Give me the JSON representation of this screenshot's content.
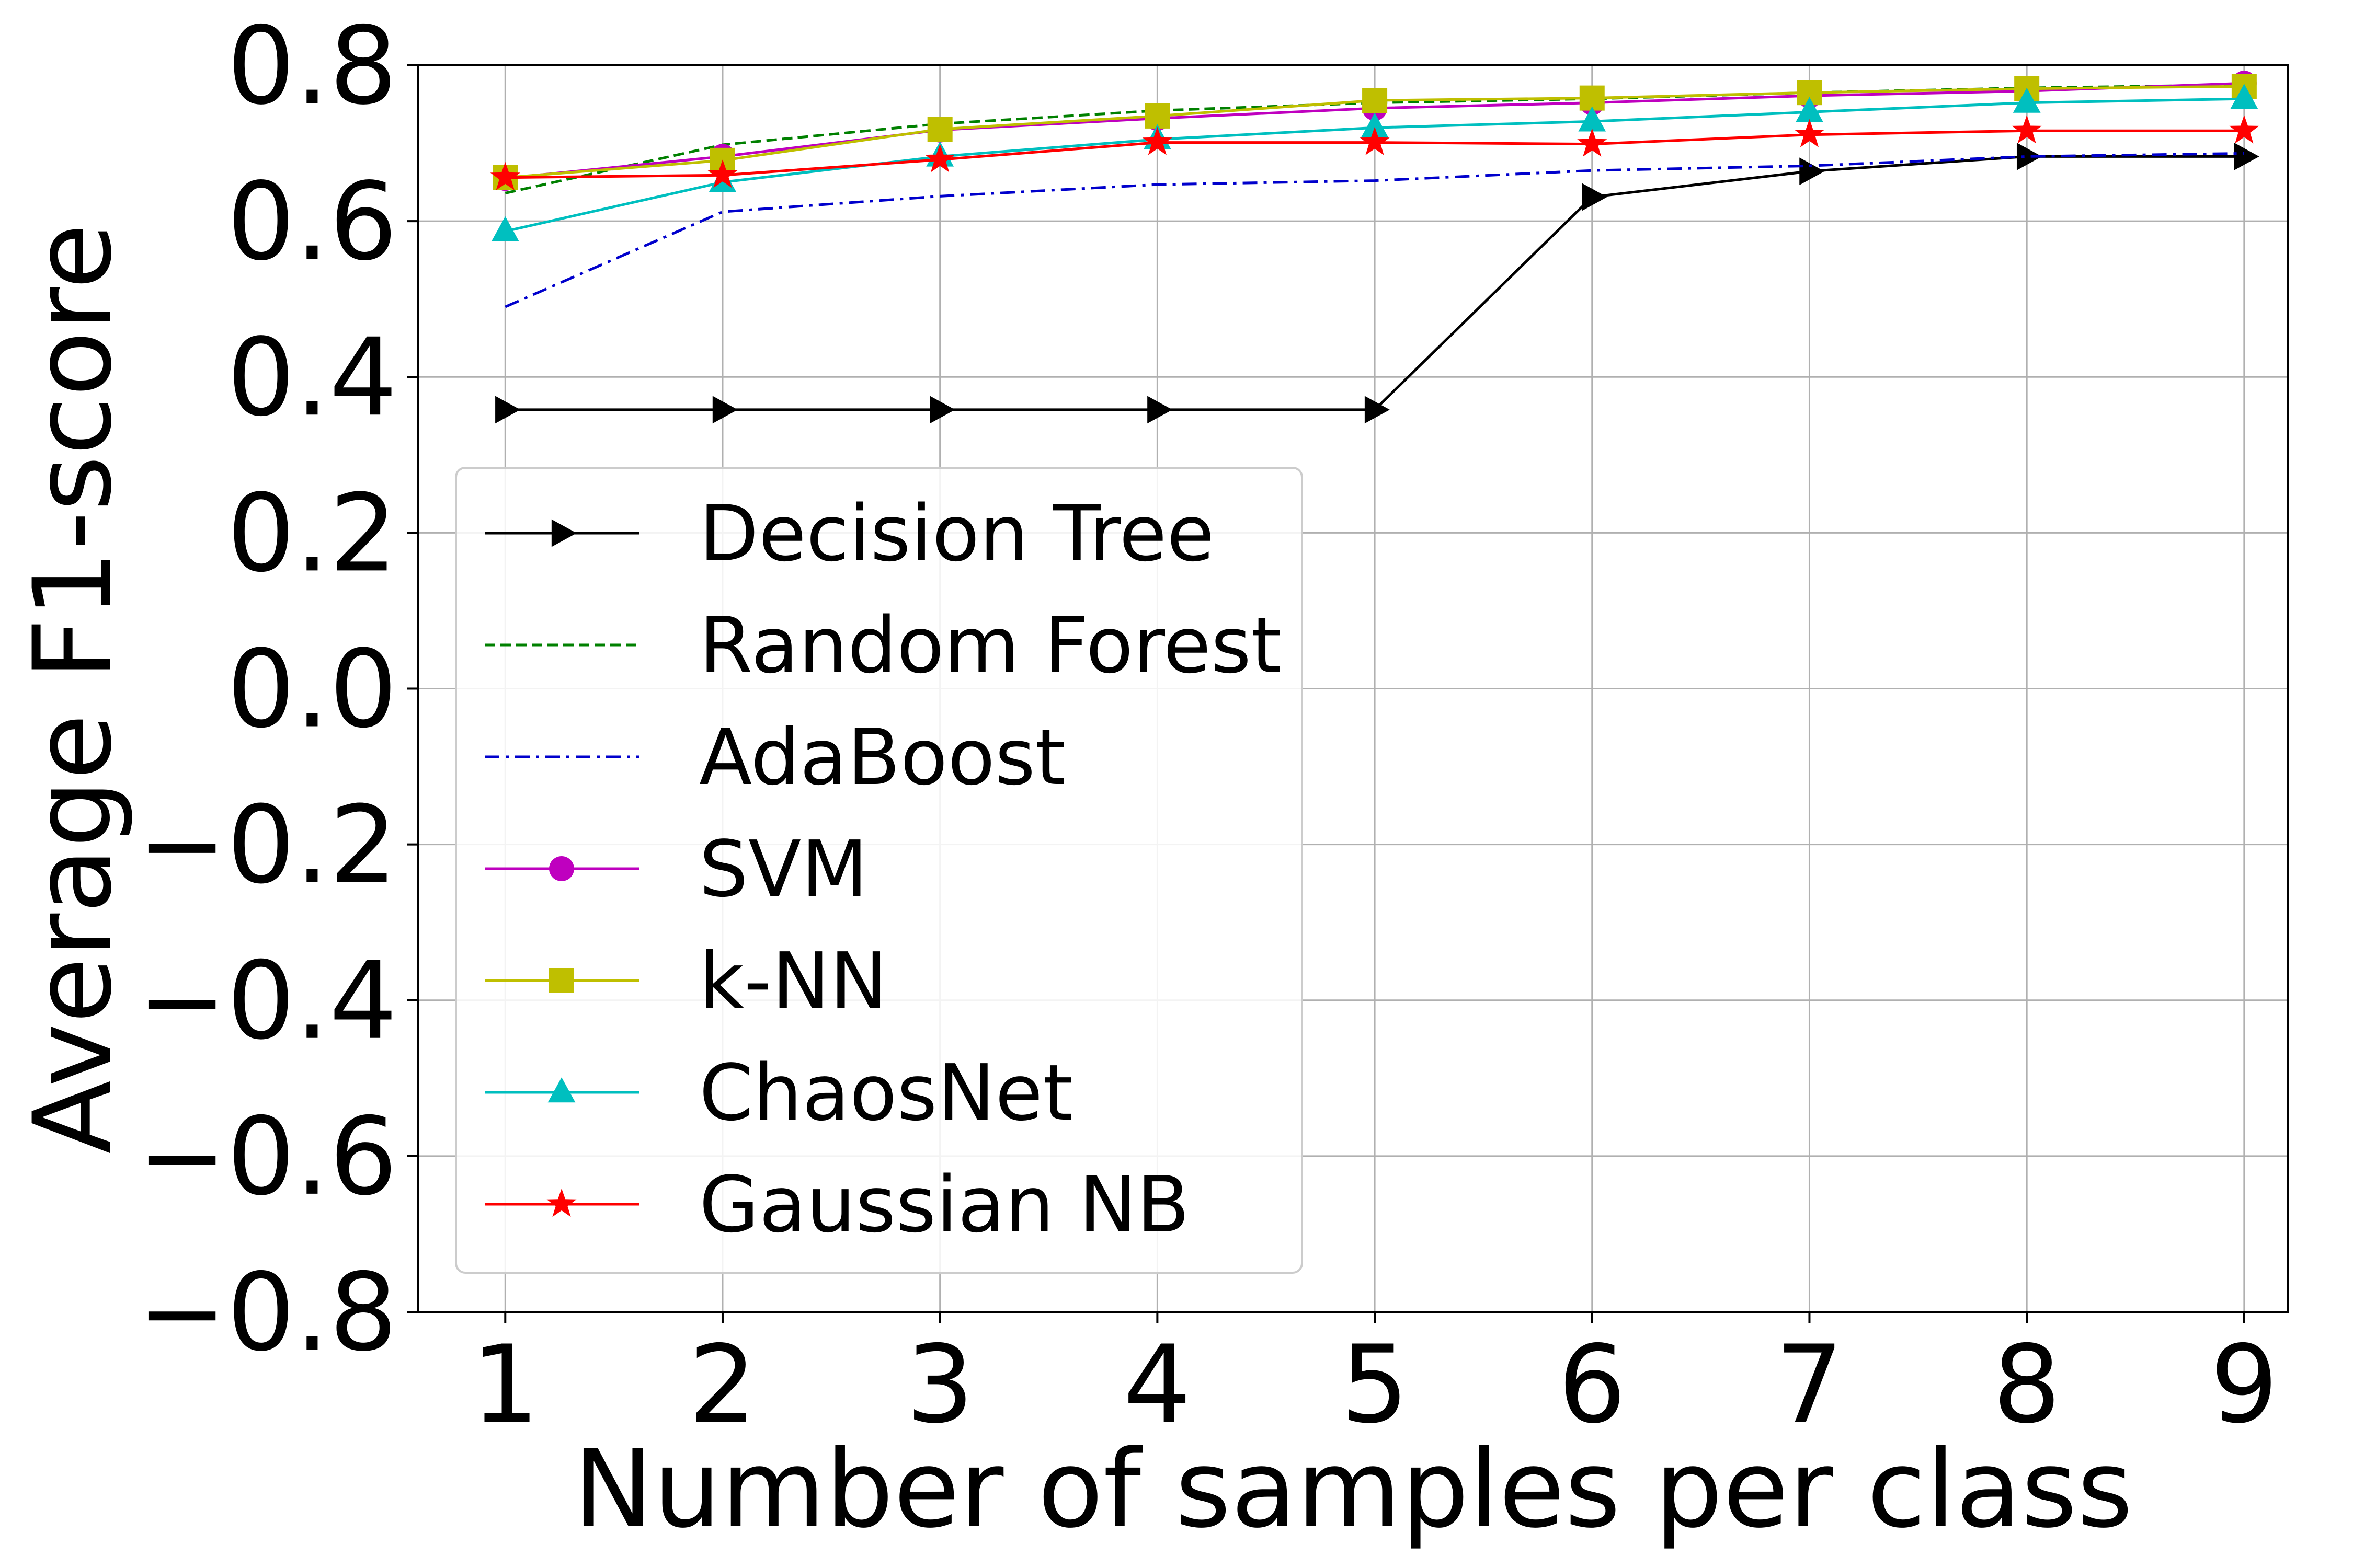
{
  "chart_data": {
    "type": "line",
    "title": "",
    "xlabel": "Number of samples per class",
    "ylabel": "Average F1-score",
    "x": [
      1,
      2,
      3,
      4,
      5,
      6,
      7,
      8,
      9
    ],
    "xticks": [
      "1",
      "2",
      "3",
      "4",
      "5",
      "6",
      "7",
      "8",
      "9"
    ],
    "xlim": [
      0.6,
      9.2
    ],
    "ylim": [
      -0.8,
      0.8
    ],
    "yticks": [
      -0.8,
      -0.6,
      -0.4,
      -0.2,
      0.0,
      0.2,
      0.4,
      0.6,
      0.8
    ],
    "ytick_labels": [
      "−0.8",
      "−0.6",
      "−0.4",
      "−0.2",
      "0.0",
      "0.2",
      "0.4",
      "0.6",
      "0.8"
    ],
    "grid": true,
    "legend_position": "lower-left",
    "series": [
      {
        "name": "Decision Tree",
        "color": "#000000",
        "dash": "solid",
        "marker": "triangle-right",
        "values": [
          0.358,
          0.358,
          0.358,
          0.358,
          0.358,
          0.631,
          0.664,
          0.683,
          0.683
        ]
      },
      {
        "name": "Random Forest",
        "color": "#008000",
        "dash": "dashed",
        "marker": "none",
        "values": [
          0.636,
          0.698,
          0.725,
          0.742,
          0.752,
          0.757,
          0.765,
          0.771,
          0.775
        ]
      },
      {
        "name": "AdaBoost",
        "color": "#0000cc",
        "dash": "dashdot",
        "marker": "none",
        "values": [
          0.49,
          0.612,
          0.632,
          0.647,
          0.652,
          0.665,
          0.671,
          0.683,
          0.687
        ]
      },
      {
        "name": "SVM",
        "color": "#bf00bf",
        "dash": "solid",
        "marker": "circle",
        "values": [
          0.655,
          0.683,
          0.717,
          0.732,
          0.745,
          0.752,
          0.761,
          0.767,
          0.777
        ]
      },
      {
        "name": "k-NN",
        "color": "#bfbf00",
        "dash": "solid",
        "marker": "square",
        "values": [
          0.656,
          0.678,
          0.718,
          0.735,
          0.755,
          0.758,
          0.765,
          0.77,
          0.773
        ]
      },
      {
        "name": "ChaosNet",
        "color": "#00bfbf",
        "dash": "solid",
        "marker": "triangle-up",
        "values": [
          0.587,
          0.65,
          0.683,
          0.705,
          0.72,
          0.728,
          0.74,
          0.752,
          0.757
        ]
      },
      {
        "name": "Gaussian NB",
        "color": "#ff0000",
        "dash": "solid",
        "marker": "star",
        "values": [
          0.656,
          0.659,
          0.679,
          0.701,
          0.701,
          0.699,
          0.711,
          0.716,
          0.716
        ]
      }
    ]
  }
}
